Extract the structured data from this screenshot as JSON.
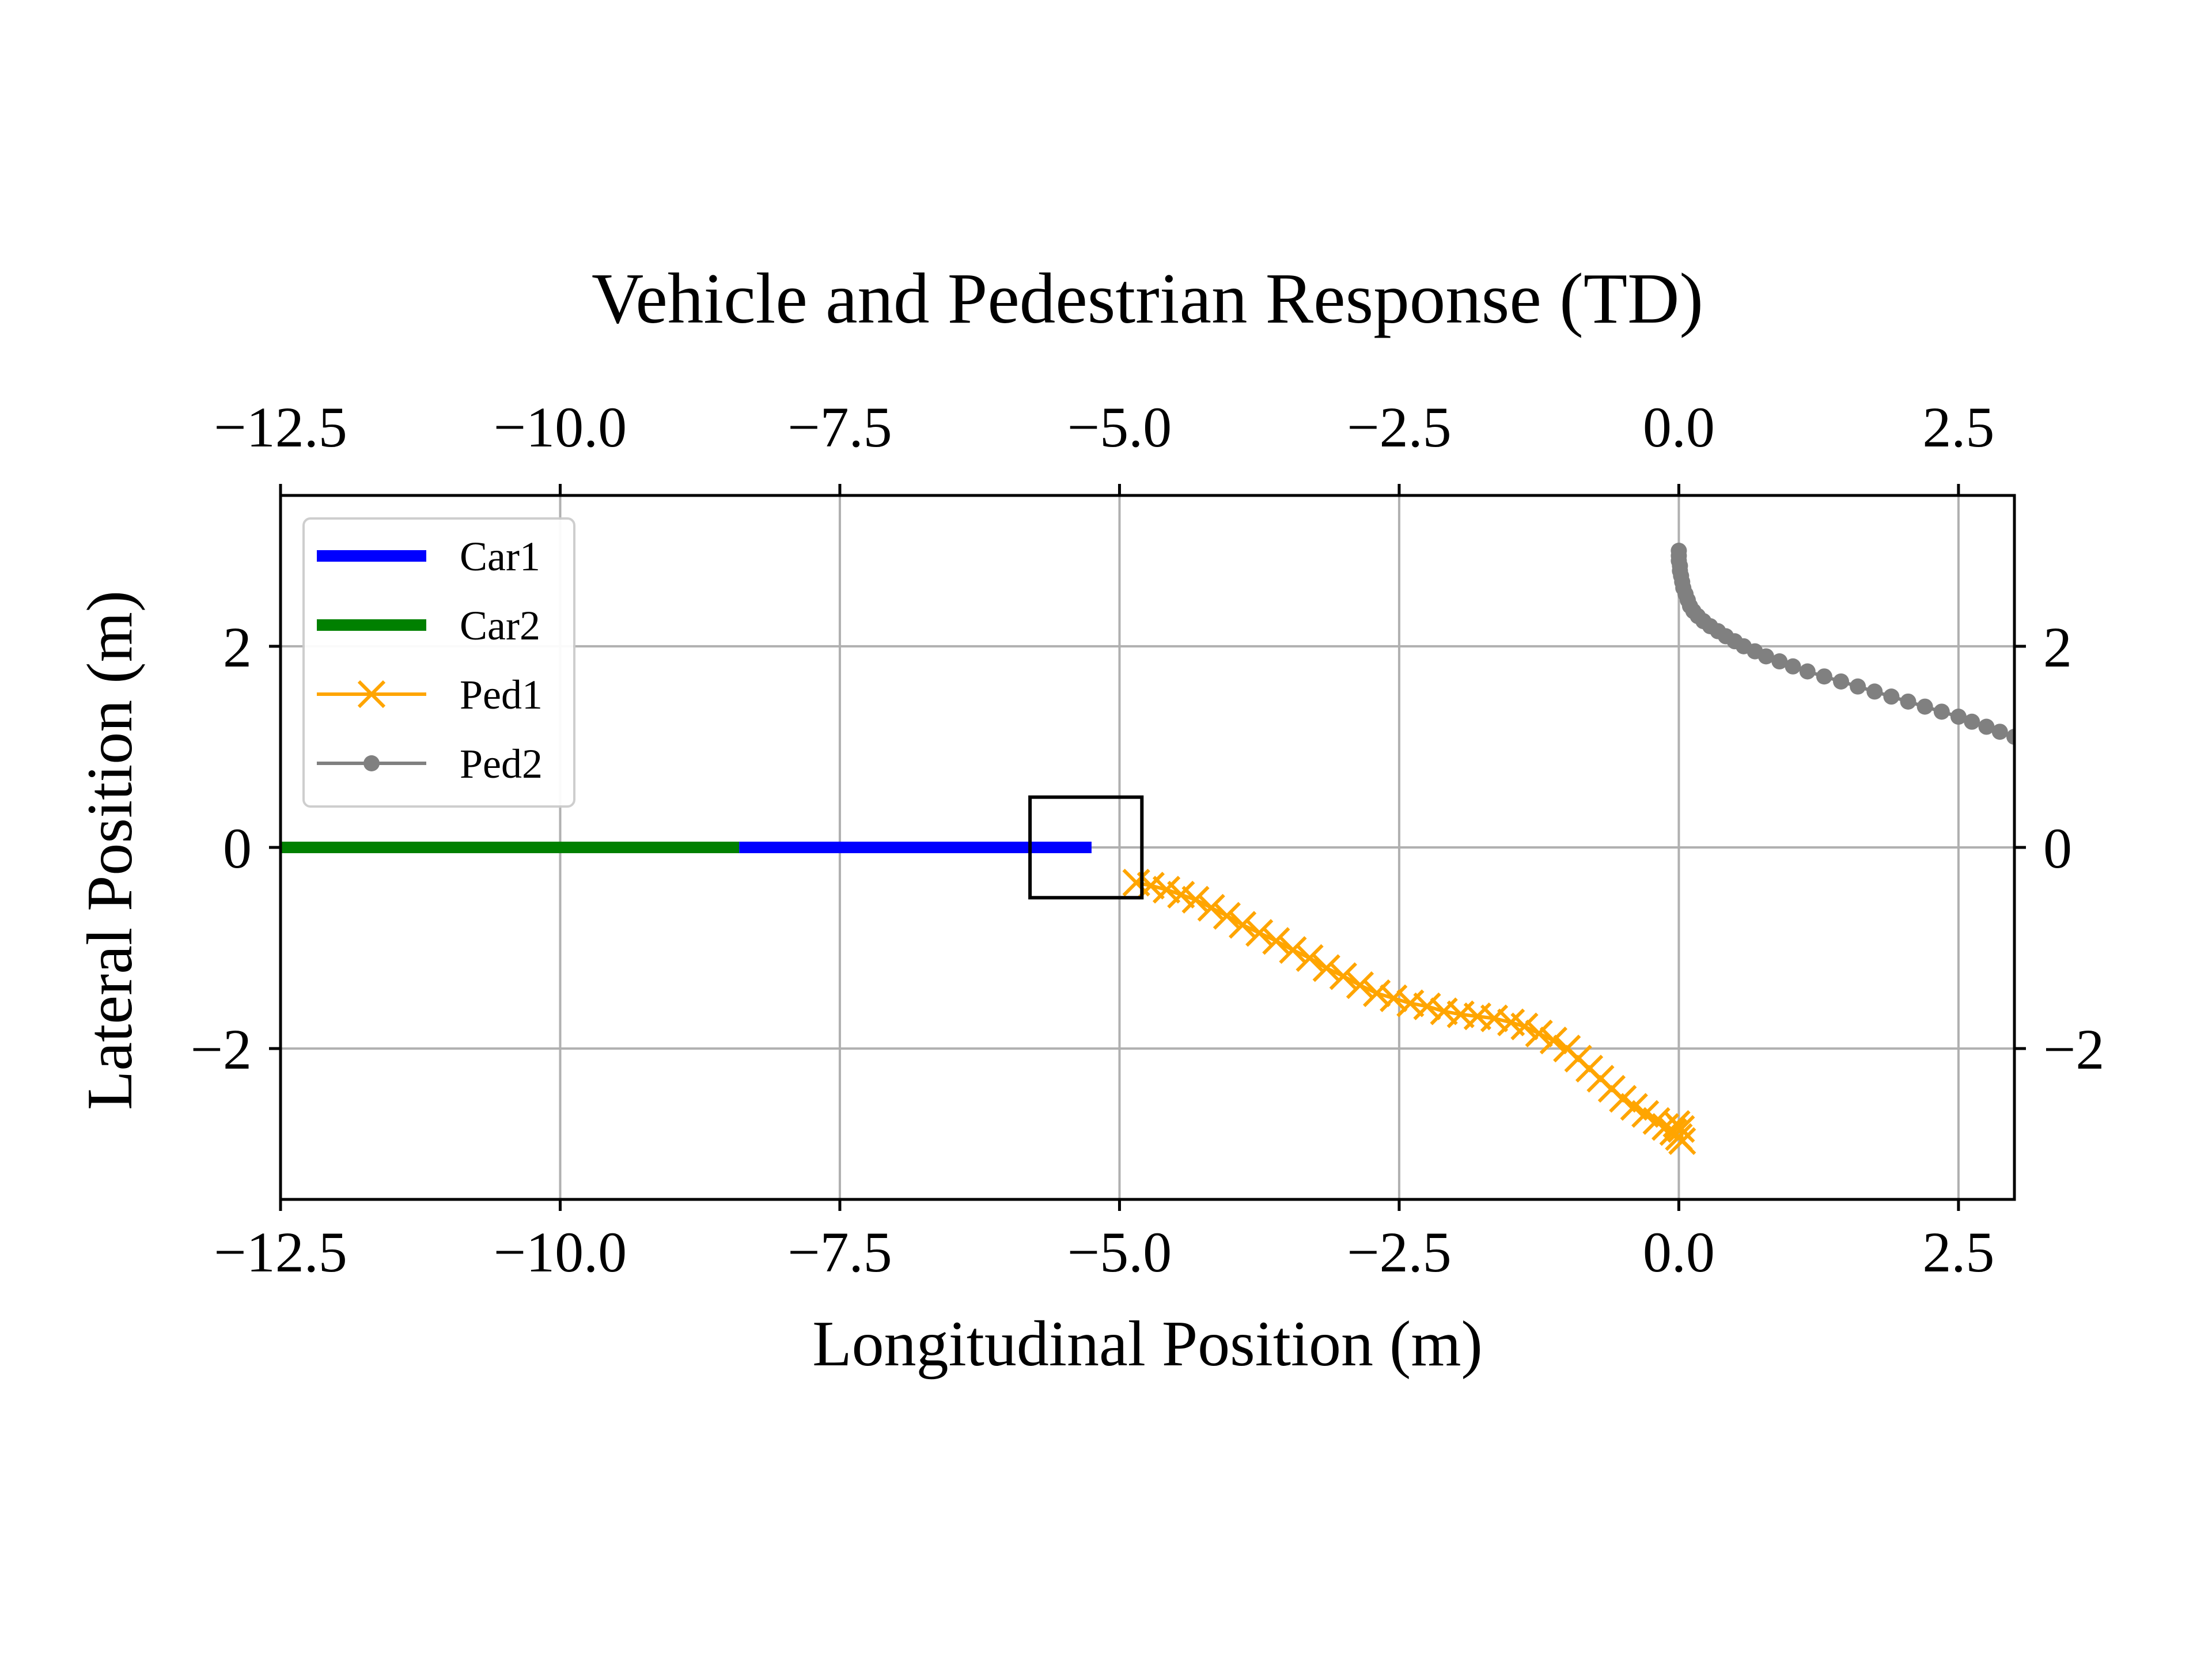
{
  "chart_data": {
    "type": "line",
    "title": "Vehicle and Pedestrian Response (TD)",
    "xlabel": "Longitudinal Position (m)",
    "ylabel": "Lateral Position (m)",
    "xlim": [
      -12.5,
      3.0
    ],
    "ylim": [
      -3.5,
      3.5
    ],
    "x_ticks": [
      -12.5,
      -10.0,
      -7.5,
      -5.0,
      -2.5,
      0.0,
      2.5
    ],
    "x_tick_labels": [
      "−12.5",
      "−10.0",
      "−7.5",
      "−5.0",
      "−2.5",
      "0.0",
      "2.5"
    ],
    "y_ticks": [
      2,
      0,
      -2
    ],
    "y_tick_labels": [
      "2",
      "0",
      "−2"
    ],
    "grid": true,
    "legend_position": "upper-left",
    "colors": {
      "car1": "#0000ff",
      "car2": "#008000",
      "ped1": "#ffa500",
      "ped2": "#808080",
      "grid": "#b0b0b0",
      "frame": "#000000"
    },
    "series": [
      {
        "name": "Car1",
        "marker": "none",
        "points": [
          [
            -8.4,
            0.0
          ],
          [
            -5.25,
            0.0
          ]
        ]
      },
      {
        "name": "Car2",
        "marker": "none",
        "points": [
          [
            -12.5,
            0.0
          ],
          [
            -8.4,
            0.0
          ]
        ]
      },
      {
        "name": "Ped1",
        "marker": "x",
        "points": [
          [
            -4.85,
            -0.35
          ],
          [
            -4.72,
            -0.38
          ],
          [
            -4.58,
            -0.42
          ],
          [
            -4.45,
            -0.47
          ],
          [
            -4.32,
            -0.52
          ],
          [
            -4.18,
            -0.6
          ],
          [
            -4.04,
            -0.68
          ],
          [
            -3.9,
            -0.77
          ],
          [
            -3.75,
            -0.85
          ],
          [
            -3.6,
            -0.93
          ],
          [
            -3.45,
            -1.02
          ],
          [
            -3.3,
            -1.1
          ],
          [
            -3.15,
            -1.2
          ],
          [
            -3.0,
            -1.28
          ],
          [
            -2.85,
            -1.37
          ],
          [
            -2.7,
            -1.45
          ],
          [
            -2.55,
            -1.5
          ],
          [
            -2.4,
            -1.55
          ],
          [
            -2.25,
            -1.58
          ],
          [
            -2.1,
            -1.63
          ],
          [
            -1.95,
            -1.66
          ],
          [
            -1.8,
            -1.68
          ],
          [
            -1.65,
            -1.7
          ],
          [
            -1.5,
            -1.74
          ],
          [
            -1.38,
            -1.78
          ],
          [
            -1.25,
            -1.85
          ],
          [
            -1.12,
            -1.92
          ],
          [
            -1.0,
            -2.0
          ],
          [
            -0.9,
            -2.1
          ],
          [
            -0.8,
            -2.2
          ],
          [
            -0.7,
            -2.3
          ],
          [
            -0.6,
            -2.4
          ],
          [
            -0.5,
            -2.5
          ],
          [
            -0.4,
            -2.58
          ],
          [
            -0.3,
            -2.65
          ],
          [
            -0.2,
            -2.72
          ],
          [
            -0.12,
            -2.78
          ],
          [
            -0.05,
            -2.83
          ],
          [
            0.0,
            -2.88
          ],
          [
            0.03,
            -2.92
          ],
          [
            0.02,
            -2.8
          ],
          [
            -0.02,
            -2.75
          ]
        ]
      },
      {
        "name": "Ped2",
        "marker": "o",
        "points": [
          [
            0.0,
            2.95
          ],
          [
            0.0,
            2.9
          ],
          [
            0.0,
            2.85
          ],
          [
            0.01,
            2.8
          ],
          [
            0.01,
            2.75
          ],
          [
            0.02,
            2.7
          ],
          [
            0.03,
            2.64
          ],
          [
            0.04,
            2.58
          ],
          [
            0.06,
            2.52
          ],
          [
            0.08,
            2.46
          ],
          [
            0.1,
            2.4
          ],
          [
            0.13,
            2.35
          ],
          [
            0.17,
            2.3
          ],
          [
            0.22,
            2.25
          ],
          [
            0.28,
            2.2
          ],
          [
            0.35,
            2.15
          ],
          [
            0.42,
            2.1
          ],
          [
            0.5,
            2.05
          ],
          [
            0.58,
            2.0
          ],
          [
            0.68,
            1.95
          ],
          [
            0.78,
            1.9
          ],
          [
            0.9,
            1.85
          ],
          [
            1.02,
            1.8
          ],
          [
            1.15,
            1.75
          ],
          [
            1.3,
            1.7
          ],
          [
            1.45,
            1.65
          ],
          [
            1.6,
            1.6
          ],
          [
            1.75,
            1.55
          ],
          [
            1.9,
            1.5
          ],
          [
            2.05,
            1.45
          ],
          [
            2.2,
            1.4
          ],
          [
            2.35,
            1.35
          ],
          [
            2.5,
            1.3
          ],
          [
            2.62,
            1.25
          ],
          [
            2.75,
            1.2
          ],
          [
            2.87,
            1.15
          ],
          [
            3.0,
            1.1
          ],
          [
            3.1,
            1.05
          ]
        ]
      }
    ]
  }
}
